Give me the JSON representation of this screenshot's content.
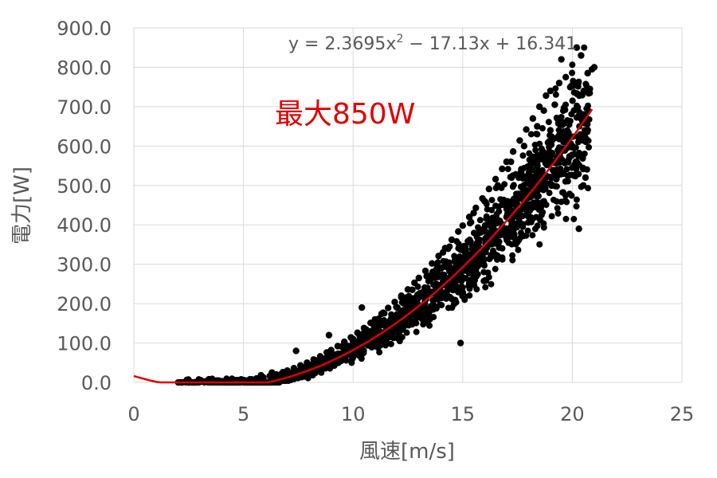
{
  "chart_data": {
    "type": "scatter",
    "xlabel": "風速[m/s]",
    "ylabel": "電力[W]",
    "xlim": [
      0,
      25
    ],
    "ylim": [
      0,
      900
    ],
    "x_ticks": [
      "0",
      "5",
      "10",
      "15",
      "20",
      "25"
    ],
    "y_ticks": [
      "0.0",
      "100.0",
      "200.0",
      "300.0",
      "400.0",
      "500.0",
      "600.0",
      "700.0",
      "800.0",
      "900.0"
    ],
    "grid": true,
    "legend": "none",
    "trendline": {
      "type": "polynomial",
      "degree": 2,
      "coefficients": [
        2.3695,
        -17.13,
        16.341
      ],
      "x_range": [
        0,
        20.9
      ],
      "color": "#e00000",
      "equation_text": {
        "prefix": "y = 2.3695x",
        "sup": "2",
        "suffix": " − 17.13x + 16.341"
      }
    },
    "annotation": "最大850W",
    "colors": {
      "points": "#000000",
      "trendline": "#e00000",
      "annotation": "#e00000",
      "text": "#595959",
      "grid": "#d9d9d9"
    },
    "series": [
      {
        "values": [
          [
            2.2,
            0
          ],
          [
            2.5,
            0
          ],
          [
            2.8,
            0
          ],
          [
            3.0,
            1
          ],
          [
            3.2,
            1
          ],
          [
            3.5,
            2
          ],
          [
            3.8,
            2
          ],
          [
            4.0,
            3
          ],
          [
            4.2,
            3
          ],
          [
            4.5,
            4
          ],
          [
            4.8,
            5
          ],
          [
            5.0,
            6
          ],
          [
            5.3,
            8
          ],
          [
            5.6,
            10
          ],
          [
            5.9,
            13
          ],
          [
            6.2,
            16
          ],
          [
            6.5,
            20
          ],
          [
            6.8,
            26
          ],
          [
            7.0,
            30
          ],
          [
            7.3,
            36
          ],
          [
            7.6,
            43
          ],
          [
            7.9,
            50
          ],
          [
            8.2,
            58
          ],
          [
            8.5,
            66
          ],
          [
            8.8,
            76
          ],
          [
            9.0,
            82
          ],
          [
            9.3,
            92
          ],
          [
            9.6,
            103
          ],
          [
            9.9,
            114
          ],
          [
            10.2,
            126
          ],
          [
            10.5,
            138
          ],
          [
            10.8,
            151
          ],
          [
            11.0,
            160
          ],
          [
            11.3,
            174
          ],
          [
            11.6,
            189
          ],
          [
            11.9,
            204
          ],
          [
            12.2,
            220
          ],
          [
            12.5,
            236
          ],
          [
            12.8,
            253
          ],
          [
            13.0,
            265
          ],
          [
            13.3,
            283
          ],
          [
            13.6,
            302
          ],
          [
            13.9,
            321
          ],
          [
            14.2,
            341
          ],
          [
            14.5,
            362
          ],
          [
            14.8,
            383
          ],
          [
            15.0,
            398
          ],
          [
            15.3,
            420
          ],
          [
            15.6,
            443
          ],
          [
            15.9,
            467
          ],
          [
            16.2,
            491
          ],
          [
            16.5,
            516
          ],
          [
            16.8,
            542
          ],
          [
            17.0,
            560
          ],
          [
            17.3,
            586
          ],
          [
            17.6,
            614
          ],
          [
            17.9,
            642
          ],
          [
            18.2,
            670
          ],
          [
            18.5,
            700
          ],
          [
            18.8,
            728
          ],
          [
            19.0,
            740
          ],
          [
            19.4,
            760
          ],
          [
            19.7,
            775
          ],
          [
            20.0,
            600
          ],
          [
            20.4,
            830
          ],
          [
            20.7,
            785
          ],
          [
            20.8,
            745
          ],
          [
            20.9,
            795
          ],
          [
            21.0,
            800
          ],
          [
            20.2,
            850
          ],
          [
            19.5,
            820
          ],
          [
            18.7,
            690
          ],
          [
            19.2,
            705
          ],
          [
            20.5,
            500
          ],
          [
            20.3,
            390
          ],
          [
            14.9,
            100
          ],
          [
            8.9,
            120
          ],
          [
            7.4,
            80
          ],
          [
            10.4,
            190
          ],
          [
            11.2,
            150
          ],
          [
            12.0,
            190
          ],
          [
            12.7,
            235
          ],
          [
            13.5,
            270
          ],
          [
            14.1,
            330
          ],
          [
            15.5,
            430
          ],
          [
            16.0,
            460
          ],
          [
            16.6,
            500
          ],
          [
            17.2,
            560
          ],
          [
            17.8,
            600
          ],
          [
            18.4,
            650
          ],
          [
            19.0,
            640
          ],
          [
            19.6,
            610
          ],
          [
            20.1,
            580
          ],
          [
            20.6,
            520
          ],
          [
            16.4,
            330
          ],
          [
            15.2,
            300
          ],
          [
            17.0,
            420
          ],
          [
            18.0,
            450
          ],
          [
            19.1,
            500
          ],
          [
            13.8,
            250
          ],
          [
            11.5,
            140
          ],
          [
            10.0,
            110
          ],
          [
            9.5,
            90
          ],
          [
            6.3,
            25
          ],
          [
            5.8,
            18
          ],
          [
            4.6,
            6
          ]
        ]
      }
    ]
  }
}
